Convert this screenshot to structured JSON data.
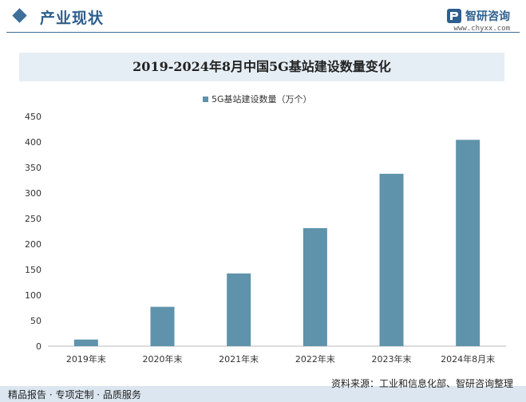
{
  "header": {
    "section_title": "产业现状",
    "brand_name": "智研咨询",
    "brand_url": "www.chyxx.com"
  },
  "chart_data": {
    "type": "bar",
    "title": "2019-2024年8月中国5G基站建设数量变化",
    "categories": [
      "2019年末",
      "2020年末",
      "2021年末",
      "2022年末",
      "2023年末",
      "2024年8月末"
    ],
    "series": [
      {
        "name": "5G基站建设数量（万个）",
        "values": [
          13,
          77.1,
          142.5,
          231.2,
          337.7,
          404.2
        ]
      }
    ],
    "ylim": [
      0,
      450
    ],
    "yticks": [
      0,
      50,
      100,
      150,
      200,
      250,
      300,
      350,
      400,
      450
    ],
    "grid": false,
    "legend": "top-center",
    "bar_color": "#5f93ab"
  },
  "footer": {
    "source": "资料来源：工业和信息化部、智研咨询整理",
    "slogan": "精品报告 · 专项定制 · 品质服务"
  }
}
